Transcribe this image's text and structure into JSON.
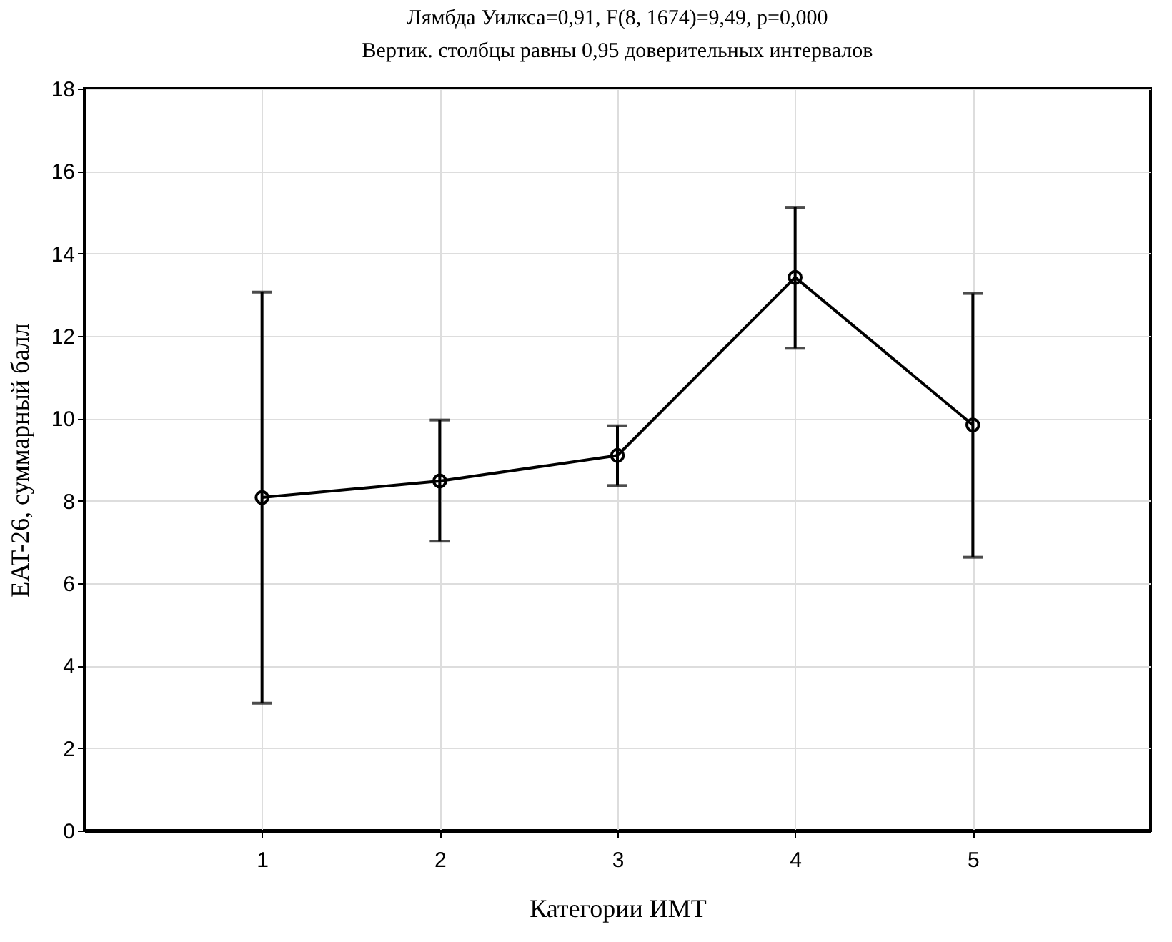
{
  "chart_data": {
    "type": "line",
    "title": "Лямбда Уилкса=0,91, F(8, 1674)=9,49, p=0,000",
    "subtitle": "Вертик. столбцы равны 0,95 доверительных интервалов",
    "xlabel": "Категории ИМТ",
    "ylabel": "EAT-26, суммарный балл",
    "x": [
      1,
      2,
      3,
      4,
      5
    ],
    "series": [
      {
        "color": "#000000",
        "values": [
          8.08,
          8.48,
          9.1,
          13.42,
          9.84
        ],
        "errors": [
          [
            3.09,
            13.06
          ],
          [
            7.02,
            9.96
          ],
          [
            8.37,
            9.82
          ],
          [
            11.7,
            15.12
          ],
          [
            6.63,
            13.03
          ]
        ]
      }
    ],
    "xlim": [
      0,
      6
    ],
    "xticks": [
      1,
      2,
      3,
      4,
      5
    ],
    "ylim": [
      0,
      18
    ],
    "yticks": [
      0,
      2,
      4,
      6,
      8,
      10,
      12,
      14,
      16,
      18
    ],
    "grid": true,
    "marker": "circle",
    "line_style": "solid"
  }
}
